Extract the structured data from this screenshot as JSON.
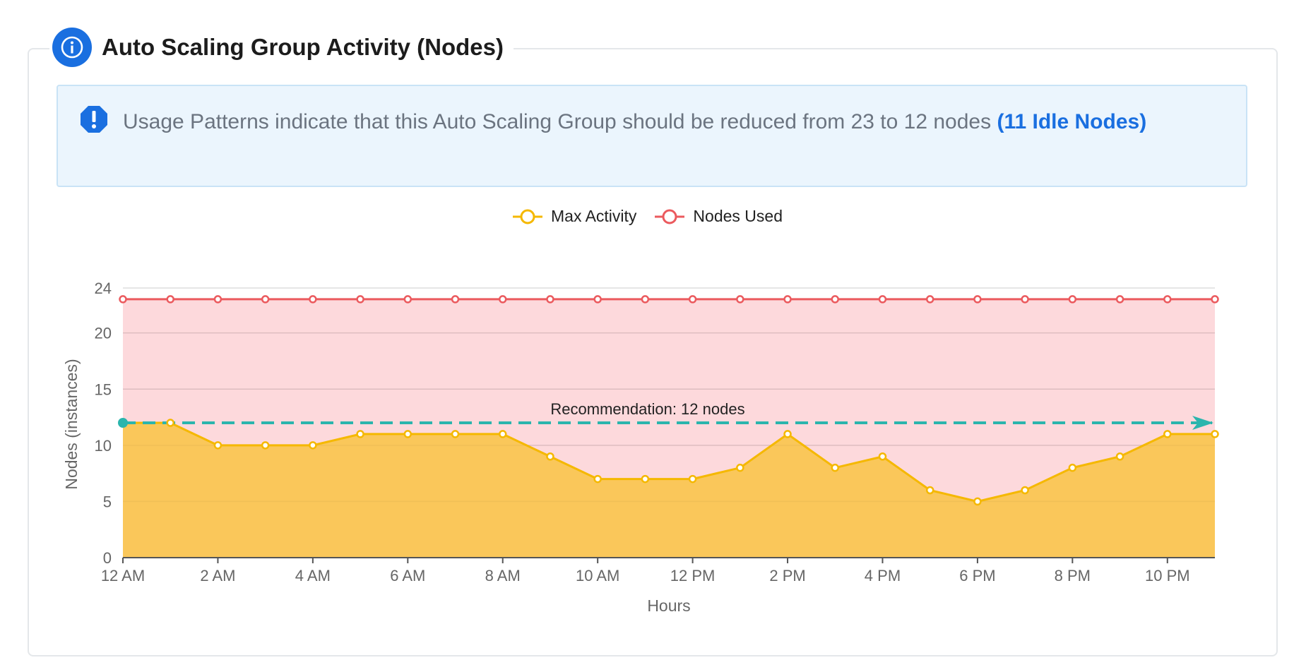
{
  "header": {
    "title": "Auto Scaling Group Activity (Nodes)",
    "icon": "info-icon"
  },
  "alert": {
    "icon": "exclamation-octagon-icon",
    "text": "Usage Patterns indicate that this Auto Scaling Group should be reduced from 23 to 12 nodes ",
    "link_text": "(11 Idle Nodes)"
  },
  "colors": {
    "accent": "#1a6fe0",
    "max_activity": "#f5b800",
    "max_activity_fill": "#fac75a",
    "nodes_used": "#eb5a5e",
    "nodes_used_fill": "#fdd9dc",
    "recommendation": "#2bb5ad"
  },
  "chart_data": {
    "type": "area",
    "xlabel": "Hours",
    "ylabel": "Nodes (instances)",
    "ylim": [
      0,
      24
    ],
    "yticks": [
      0,
      5,
      10,
      15,
      20,
      24
    ],
    "x": [
      "12 AM",
      "1 AM",
      "2 AM",
      "3 AM",
      "4 AM",
      "5 AM",
      "6 AM",
      "7 AM",
      "8 AM",
      "9 AM",
      "10 AM",
      "11 AM",
      "12 PM",
      "1 PM",
      "2 PM",
      "3 PM",
      "4 PM",
      "5 PM",
      "6 PM",
      "7 PM",
      "8 PM",
      "9 PM",
      "10 PM",
      "11 PM"
    ],
    "xtick_labels": [
      "12 AM",
      "2 AM",
      "4 AM",
      "6 AM",
      "8 AM",
      "10 AM",
      "12 PM",
      "2 PM",
      "4 PM",
      "6 PM",
      "8 PM",
      "10 PM"
    ],
    "legend_position": "top-center",
    "grid": true,
    "series": [
      {
        "name": "Max Activity",
        "values": [
          12,
          12,
          10,
          10,
          10,
          11,
          11,
          11,
          11,
          9,
          7,
          7,
          7,
          8,
          11,
          8,
          9,
          6,
          5,
          6,
          8,
          9,
          11,
          11
        ]
      },
      {
        "name": "Nodes Used",
        "values": [
          23,
          23,
          23,
          23,
          23,
          23,
          23,
          23,
          23,
          23,
          23,
          23,
          23,
          23,
          23,
          23,
          23,
          23,
          23,
          23,
          23,
          23,
          23,
          23
        ]
      }
    ],
    "annotation": {
      "label": "Recommendation: 12 nodes",
      "value": 12
    }
  }
}
